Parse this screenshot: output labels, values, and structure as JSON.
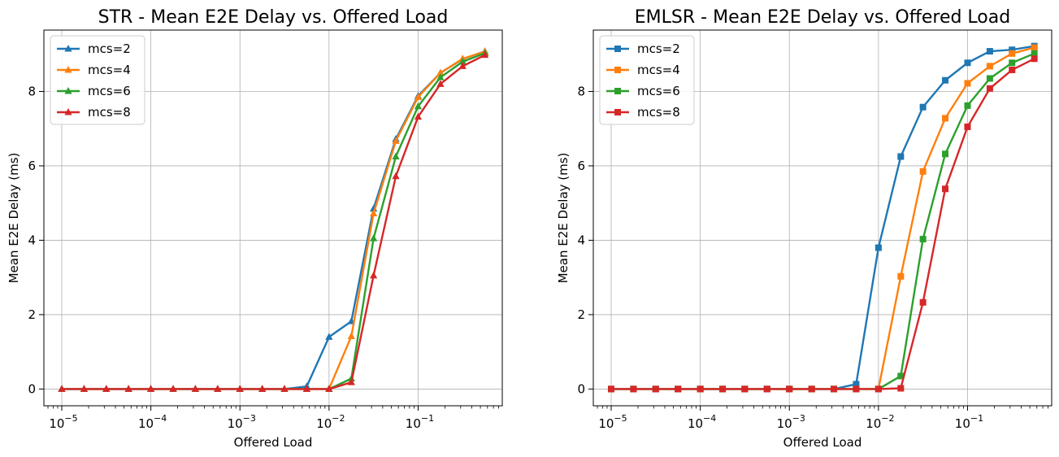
{
  "chart_data": [
    {
      "type": "line",
      "title": "STR - Mean E2E Delay vs. Offered Load",
      "xlabel": "Offered Load",
      "ylabel": "Mean E2E Delay (ms)",
      "xscale": "log",
      "xlim": [
        6.3e-06,
        0.88
      ],
      "ylim": [
        -0.45,
        9.65
      ],
      "grid": true,
      "legend_position": "top-left",
      "marker": "triangle",
      "x_ticks": [
        {
          "base": "10",
          "exp": "−5"
        },
        {
          "base": "10",
          "exp": "−4"
        },
        {
          "base": "10",
          "exp": "−3"
        },
        {
          "base": "10",
          "exp": "−2"
        },
        {
          "base": "10",
          "exp": "−1"
        }
      ],
      "y_ticks": [
        "0",
        "2",
        "4",
        "6",
        "8"
      ],
      "x": [
        1e-05,
        1.78e-05,
        3.16e-05,
        5.62e-05,
        0.0001,
        0.000178,
        0.000316,
        0.000562,
        0.001,
        0.00178,
        0.00316,
        0.00562,
        0.01,
        0.0178,
        0.0316,
        0.0562,
        0.1,
        0.178,
        0.316,
        0.562
      ],
      "series": [
        {
          "name": "mcs=2",
          "color": "#1f77b4",
          "values": [
            0,
            0,
            0,
            0,
            0,
            0,
            0,
            0,
            0,
            0,
            0,
            0.07,
            1.4,
            1.82,
            4.85,
            6.72,
            7.88,
            8.5,
            8.87,
            9.08
          ]
        },
        {
          "name": "mcs=4",
          "color": "#ff7f0e",
          "values": [
            0,
            0,
            0,
            0,
            0,
            0,
            0,
            0,
            0,
            0,
            0,
            0,
            0,
            1.42,
            4.72,
            6.67,
            7.85,
            8.5,
            8.88,
            9.07
          ]
        },
        {
          "name": "mcs=6",
          "color": "#2ca02c",
          "values": [
            0,
            0,
            0,
            0,
            0,
            0,
            0,
            0,
            0,
            0,
            0,
            0,
            0,
            0.28,
            4.05,
            6.25,
            7.6,
            8.38,
            8.8,
            9.03
          ]
        },
        {
          "name": "mcs=8",
          "color": "#d62728",
          "values": [
            0,
            0,
            0,
            0,
            0,
            0,
            0,
            0,
            0,
            0,
            0,
            0,
            0,
            0.18,
            3.05,
            5.72,
            7.32,
            8.2,
            8.68,
            8.98
          ]
        }
      ]
    },
    {
      "type": "line",
      "title": "EMLSR - Mean E2E Delay vs. Offered Load",
      "xlabel": "Offered Load",
      "ylabel": "Mean E2E Delay (ms)",
      "xscale": "log",
      "xlim": [
        6.3e-06,
        0.88
      ],
      "ylim": [
        -0.45,
        9.65
      ],
      "grid": true,
      "legend_position": "top-left",
      "marker": "square",
      "x_ticks": [
        {
          "base": "10",
          "exp": "−5"
        },
        {
          "base": "10",
          "exp": "−4"
        },
        {
          "base": "10",
          "exp": "−3"
        },
        {
          "base": "10",
          "exp": "−2"
        },
        {
          "base": "10",
          "exp": "−1"
        }
      ],
      "y_ticks": [
        "0",
        "2",
        "4",
        "6",
        "8"
      ],
      "x": [
        1e-05,
        1.78e-05,
        3.16e-05,
        5.62e-05,
        0.0001,
        0.000178,
        0.000316,
        0.000562,
        0.001,
        0.00178,
        0.00316,
        0.00562,
        0.01,
        0.0178,
        0.0316,
        0.0562,
        0.1,
        0.178,
        0.316,
        0.562
      ],
      "series": [
        {
          "name": "mcs=2",
          "color": "#1f77b4",
          "values": [
            0,
            0,
            0,
            0,
            0,
            0,
            0,
            0,
            0,
            0,
            0,
            0.13,
            3.8,
            6.25,
            7.58,
            8.3,
            8.77,
            9.08,
            9.12,
            9.22
          ]
        },
        {
          "name": "mcs=4",
          "color": "#ff7f0e",
          "values": [
            0,
            0,
            0,
            0,
            0,
            0,
            0,
            0,
            0,
            0,
            0,
            0,
            0,
            3.03,
            5.85,
            7.28,
            8.22,
            8.68,
            9.02,
            9.18
          ]
        },
        {
          "name": "mcs=6",
          "color": "#2ca02c",
          "values": [
            0,
            0,
            0,
            0,
            0,
            0,
            0,
            0,
            0,
            0,
            0,
            0,
            0,
            0.35,
            4.03,
            6.32,
            7.62,
            8.35,
            8.77,
            9.02
          ]
        },
        {
          "name": "mcs=8",
          "color": "#d62728",
          "values": [
            0,
            0,
            0,
            0,
            0,
            0,
            0,
            0,
            0,
            0,
            0,
            0,
            0,
            0.02,
            2.33,
            5.38,
            7.05,
            8.08,
            8.58,
            8.88
          ]
        }
      ]
    }
  ]
}
